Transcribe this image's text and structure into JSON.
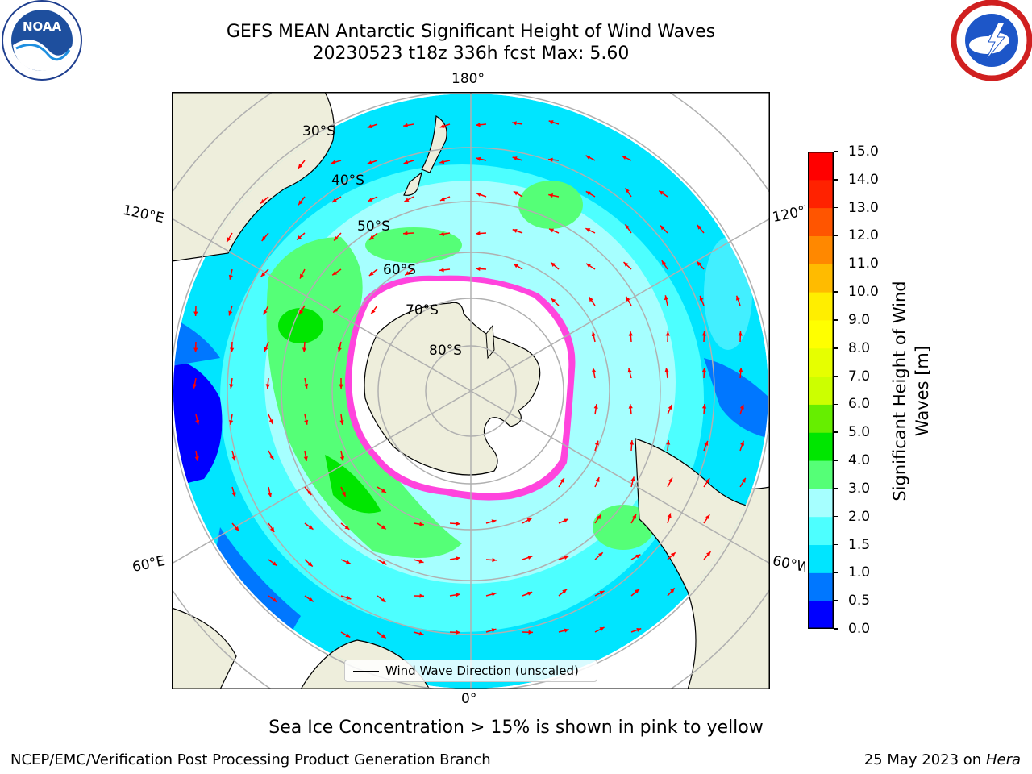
{
  "title_line1": "GEFS MEAN Antarctic Significant Height of Wind Waves",
  "title_line2": "20230523 t18z 336h fcst   Max: 5.60",
  "logos": {
    "left": "noaa-logo",
    "left_text": "NOAA",
    "right": "nws-logo"
  },
  "map": {
    "projection": "south-polar-stereographic",
    "lon_labels": {
      "top": "180°",
      "bottom": "0°",
      "upper_left": "120°E",
      "upper_right": "120°W",
      "lower_left": "60°E",
      "lower_right": "60°W"
    },
    "lat_labels": [
      "30°S",
      "40°S",
      "50°S",
      "60°S",
      "70°S",
      "80°S"
    ],
    "legend": "Wind Wave Direction (unscaled)",
    "colors": {
      "land": "#eeeedc",
      "ice_edge": "#ff44dd",
      "arrow": "#ff0000",
      "grid": "#b0b0b0"
    }
  },
  "colorbar": {
    "label": "Significant Height of Wind Waves [m]",
    "ticks": [
      "0.0",
      "0.5",
      "1.0",
      "1.5",
      "2.0",
      "3.0",
      "4.0",
      "5.0",
      "6.0",
      "7.0",
      "8.0",
      "9.0",
      "10.0",
      "11.0",
      "12.0",
      "13.0",
      "14.0",
      "15.0"
    ],
    "colors": [
      "#0000ff",
      "#0077ff",
      "#00e5ff",
      "#4dffff",
      "#a6ffff",
      "#55ff77",
      "#00e600",
      "#66ee00",
      "#ccff00",
      "#e6ff00",
      "#ffff00",
      "#ffee00",
      "#ffbb00",
      "#ff8800",
      "#ff5500",
      "#ff2200",
      "#ff0000"
    ]
  },
  "note": "Sea Ice Concentration > 15% is shown in pink to yellow",
  "footer_left": "NCEP/EMC/Verification Post Processing Product Generation Branch",
  "footer_date": "25 May 2023 on",
  "footer_host": "Hera"
}
